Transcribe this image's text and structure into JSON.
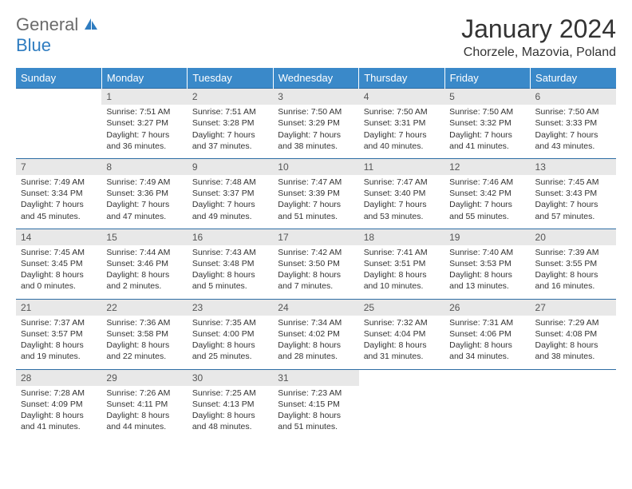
{
  "logo": {
    "part1": "General",
    "part2": "Blue"
  },
  "title": "January 2024",
  "location": "Chorzele, Mazovia, Poland",
  "colors": {
    "header_bg": "#3a89c9",
    "header_text": "#ffffff",
    "daynum_bg": "#e8e8e8",
    "border": "#2e6da4",
    "logo_gray": "#6a6a6a",
    "logo_blue": "#2e7cc0"
  },
  "weekdays": [
    "Sunday",
    "Monday",
    "Tuesday",
    "Wednesday",
    "Thursday",
    "Friday",
    "Saturday"
  ],
  "weeks": [
    [
      {
        "day": "",
        "sunrise": "",
        "sunset": "",
        "daylight": ""
      },
      {
        "day": "1",
        "sunrise": "Sunrise: 7:51 AM",
        "sunset": "Sunset: 3:27 PM",
        "daylight": "Daylight: 7 hours and 36 minutes."
      },
      {
        "day": "2",
        "sunrise": "Sunrise: 7:51 AM",
        "sunset": "Sunset: 3:28 PM",
        "daylight": "Daylight: 7 hours and 37 minutes."
      },
      {
        "day": "3",
        "sunrise": "Sunrise: 7:50 AM",
        "sunset": "Sunset: 3:29 PM",
        "daylight": "Daylight: 7 hours and 38 minutes."
      },
      {
        "day": "4",
        "sunrise": "Sunrise: 7:50 AM",
        "sunset": "Sunset: 3:31 PM",
        "daylight": "Daylight: 7 hours and 40 minutes."
      },
      {
        "day": "5",
        "sunrise": "Sunrise: 7:50 AM",
        "sunset": "Sunset: 3:32 PM",
        "daylight": "Daylight: 7 hours and 41 minutes."
      },
      {
        "day": "6",
        "sunrise": "Sunrise: 7:50 AM",
        "sunset": "Sunset: 3:33 PM",
        "daylight": "Daylight: 7 hours and 43 minutes."
      }
    ],
    [
      {
        "day": "7",
        "sunrise": "Sunrise: 7:49 AM",
        "sunset": "Sunset: 3:34 PM",
        "daylight": "Daylight: 7 hours and 45 minutes."
      },
      {
        "day": "8",
        "sunrise": "Sunrise: 7:49 AM",
        "sunset": "Sunset: 3:36 PM",
        "daylight": "Daylight: 7 hours and 47 minutes."
      },
      {
        "day": "9",
        "sunrise": "Sunrise: 7:48 AM",
        "sunset": "Sunset: 3:37 PM",
        "daylight": "Daylight: 7 hours and 49 minutes."
      },
      {
        "day": "10",
        "sunrise": "Sunrise: 7:47 AM",
        "sunset": "Sunset: 3:39 PM",
        "daylight": "Daylight: 7 hours and 51 minutes."
      },
      {
        "day": "11",
        "sunrise": "Sunrise: 7:47 AM",
        "sunset": "Sunset: 3:40 PM",
        "daylight": "Daylight: 7 hours and 53 minutes."
      },
      {
        "day": "12",
        "sunrise": "Sunrise: 7:46 AM",
        "sunset": "Sunset: 3:42 PM",
        "daylight": "Daylight: 7 hours and 55 minutes."
      },
      {
        "day": "13",
        "sunrise": "Sunrise: 7:45 AM",
        "sunset": "Sunset: 3:43 PM",
        "daylight": "Daylight: 7 hours and 57 minutes."
      }
    ],
    [
      {
        "day": "14",
        "sunrise": "Sunrise: 7:45 AM",
        "sunset": "Sunset: 3:45 PM",
        "daylight": "Daylight: 8 hours and 0 minutes."
      },
      {
        "day": "15",
        "sunrise": "Sunrise: 7:44 AM",
        "sunset": "Sunset: 3:46 PM",
        "daylight": "Daylight: 8 hours and 2 minutes."
      },
      {
        "day": "16",
        "sunrise": "Sunrise: 7:43 AM",
        "sunset": "Sunset: 3:48 PM",
        "daylight": "Daylight: 8 hours and 5 minutes."
      },
      {
        "day": "17",
        "sunrise": "Sunrise: 7:42 AM",
        "sunset": "Sunset: 3:50 PM",
        "daylight": "Daylight: 8 hours and 7 minutes."
      },
      {
        "day": "18",
        "sunrise": "Sunrise: 7:41 AM",
        "sunset": "Sunset: 3:51 PM",
        "daylight": "Daylight: 8 hours and 10 minutes."
      },
      {
        "day": "19",
        "sunrise": "Sunrise: 7:40 AM",
        "sunset": "Sunset: 3:53 PM",
        "daylight": "Daylight: 8 hours and 13 minutes."
      },
      {
        "day": "20",
        "sunrise": "Sunrise: 7:39 AM",
        "sunset": "Sunset: 3:55 PM",
        "daylight": "Daylight: 8 hours and 16 minutes."
      }
    ],
    [
      {
        "day": "21",
        "sunrise": "Sunrise: 7:37 AM",
        "sunset": "Sunset: 3:57 PM",
        "daylight": "Daylight: 8 hours and 19 minutes."
      },
      {
        "day": "22",
        "sunrise": "Sunrise: 7:36 AM",
        "sunset": "Sunset: 3:58 PM",
        "daylight": "Daylight: 8 hours and 22 minutes."
      },
      {
        "day": "23",
        "sunrise": "Sunrise: 7:35 AM",
        "sunset": "Sunset: 4:00 PM",
        "daylight": "Daylight: 8 hours and 25 minutes."
      },
      {
        "day": "24",
        "sunrise": "Sunrise: 7:34 AM",
        "sunset": "Sunset: 4:02 PM",
        "daylight": "Daylight: 8 hours and 28 minutes."
      },
      {
        "day": "25",
        "sunrise": "Sunrise: 7:32 AM",
        "sunset": "Sunset: 4:04 PM",
        "daylight": "Daylight: 8 hours and 31 minutes."
      },
      {
        "day": "26",
        "sunrise": "Sunrise: 7:31 AM",
        "sunset": "Sunset: 4:06 PM",
        "daylight": "Daylight: 8 hours and 34 minutes."
      },
      {
        "day": "27",
        "sunrise": "Sunrise: 7:29 AM",
        "sunset": "Sunset: 4:08 PM",
        "daylight": "Daylight: 8 hours and 38 minutes."
      }
    ],
    [
      {
        "day": "28",
        "sunrise": "Sunrise: 7:28 AM",
        "sunset": "Sunset: 4:09 PM",
        "daylight": "Daylight: 8 hours and 41 minutes."
      },
      {
        "day": "29",
        "sunrise": "Sunrise: 7:26 AM",
        "sunset": "Sunset: 4:11 PM",
        "daylight": "Daylight: 8 hours and 44 minutes."
      },
      {
        "day": "30",
        "sunrise": "Sunrise: 7:25 AM",
        "sunset": "Sunset: 4:13 PM",
        "daylight": "Daylight: 8 hours and 48 minutes."
      },
      {
        "day": "31",
        "sunrise": "Sunrise: 7:23 AM",
        "sunset": "Sunset: 4:15 PM",
        "daylight": "Daylight: 8 hours and 51 minutes."
      },
      {
        "day": "",
        "sunrise": "",
        "sunset": "",
        "daylight": ""
      },
      {
        "day": "",
        "sunrise": "",
        "sunset": "",
        "daylight": ""
      },
      {
        "day": "",
        "sunrise": "",
        "sunset": "",
        "daylight": ""
      }
    ]
  ]
}
